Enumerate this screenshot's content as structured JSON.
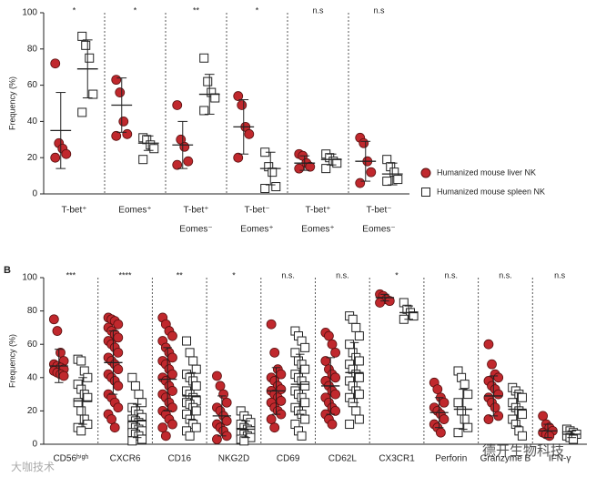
{
  "chart_data": [
    {
      "type": "dot",
      "ylabel": "Frequency (%)",
      "ylim": [
        0,
        100
      ],
      "yticks": [
        0,
        20,
        40,
        60,
        80,
        100
      ],
      "legend": "right",
      "categories": [
        [
          "T-bet⁺"
        ],
        [
          "Eomes⁺"
        ],
        [
          "T-bet⁺",
          "Eomes⁻"
        ],
        [
          "T-bet⁻",
          "Eomes⁺"
        ],
        [
          "T-bet⁺",
          "Eomes⁺"
        ],
        [
          "T-bet⁻",
          "Eomes⁻"
        ]
      ],
      "significance": [
        "*",
        "*",
        "**",
        "*",
        "n.s",
        "n.s"
      ],
      "series": [
        {
          "name": "Humanized mouse liver NK",
          "color": "#c0282d",
          "marker": "circle",
          "values": [
            [
              72,
              28,
              25,
              22,
              20
            ],
            [
              63,
              56,
              40,
              33,
              32
            ],
            [
              49,
              30,
              26,
              18,
              16
            ],
            [
              54,
              49,
              37,
              33,
              20
            ],
            [
              22,
              21,
              17,
              15,
              14
            ],
            [
              31,
              28,
              18,
              12,
              6
            ]
          ],
          "mean": [
            35,
            49,
            27,
            37,
            17,
            18
          ],
          "sd": [
            21,
            15,
            13,
            15,
            4,
            11
          ]
        },
        {
          "name": "Humanized mouse spleen NK",
          "color": "#ffffff",
          "marker": "square",
          "values": [
            [
              87,
              82,
              75,
              55,
              45
            ],
            [
              31,
              30,
              27,
              25,
              19
            ],
            [
              75,
              62,
              56,
              53,
              46
            ],
            [
              23,
              15,
              12,
              4,
              3
            ],
            [
              22,
              20,
              18,
              17,
              14
            ],
            [
              19,
              15,
              12,
              8,
              7
            ]
          ],
          "mean": [
            69,
            28,
            55,
            14,
            19,
            11
          ],
          "sd": [
            16,
            4,
            11,
            9,
            3,
            6
          ]
        }
      ]
    },
    {
      "type": "dot",
      "panel": "B",
      "ylabel": "Frequency (%)",
      "ylim": [
        0,
        100
      ],
      "yticks": [
        0,
        20,
        40,
        60,
        80,
        100
      ],
      "categories": [
        [
          "CD56ʰⁱᵍʰ"
        ],
        [
          "CXCR6"
        ],
        [
          "CD16"
        ],
        [
          "NKG2D"
        ],
        [
          "CD69"
        ],
        [
          "CD62L"
        ],
        [
          "CX3CR1"
        ],
        [
          "Perforin"
        ],
        [
          "Granzyme B"
        ],
        [
          "IFN-γ"
        ]
      ],
      "significance": [
        "***",
        "****",
        "**",
        "*",
        "n.s.",
        "n.s.",
        "*",
        "n.s.",
        "n.s.",
        "n.s"
      ],
      "series": [
        {
          "name": "Humanized mouse liver NK",
          "color": "#c0282d",
          "marker": "circle",
          "values": [
            [
              75,
              68,
              55,
              50,
              48,
              47,
              46,
              45,
              44,
              43,
              42,
              41
            ],
            [
              76,
              75,
              74,
              72,
              70,
              68,
              66,
              64,
              62,
              60,
              58,
              55,
              52,
              50,
              48,
              45,
              42,
              40,
              38,
              35,
              30,
              28,
              25,
              22,
              18,
              15,
              10
            ],
            [
              76,
              72,
              68,
              65,
              62,
              58,
              55,
              52,
              50,
              48,
              45,
              42,
              40,
              38,
              35,
              32,
              30,
              28,
              25,
              22,
              20,
              18,
              15,
              12,
              10,
              5
            ],
            [
              41,
              35,
              30,
              25,
              22,
              20,
              17,
              14,
              12,
              10,
              8,
              5,
              3
            ],
            [
              72,
              55,
              45,
              42,
              40,
              38,
              35,
              33,
              32,
              30,
              28,
              26,
              25,
              22,
              20,
              18,
              15,
              10
            ],
            [
              67,
              65,
              60,
              55,
              50,
              45,
              42,
              40,
              38,
              35,
              32,
              30,
              28,
              25,
              22,
              20,
              18,
              15,
              12
            ],
            [
              90,
              89,
              87,
              86,
              85
            ],
            [
              37,
              33,
              28,
              25,
              22,
              20,
              18,
              15,
              12,
              10,
              7
            ],
            [
              60,
              48,
              42,
              40,
              38,
              35,
              33,
              30,
              28,
              25,
              22,
              17,
              15
            ],
            [
              17,
              12,
              10,
              8,
              7,
              6,
              5
            ]
          ],
          "mean": [
            47,
            49,
            39,
            17,
            32,
            35,
            88,
            19,
            29,
            8
          ],
          "sd": [
            10,
            19,
            19,
            12,
            14,
            17,
            2,
            9,
            12,
            4
          ]
        },
        {
          "name": "Humanized mouse spleen NK",
          "color": "#ffffff",
          "marker": "square",
          "values": [
            [
              51,
              50,
              44,
              40,
              36,
              33,
              30,
              28,
              25,
              20,
              15,
              12,
              10,
              8
            ],
            [
              40,
              35,
              30,
              25,
              22,
              20,
              18,
              16,
              15,
              14,
              13,
              12,
              11,
              10,
              9,
              8,
              7,
              6,
              5,
              3,
              2
            ],
            [
              62,
              55,
              50,
              45,
              42,
              40,
              38,
              35,
              32,
              30,
              28,
              26,
              25,
              24,
              22,
              20,
              18,
              15,
              12,
              10,
              8,
              5
            ],
            [
              20,
              17,
              15,
              13,
              12,
              10,
              9,
              8,
              7,
              6,
              5,
              4,
              3,
              2
            ],
            [
              68,
              65,
              62,
              58,
              55,
              50,
              48,
              45,
              42,
              40,
              38,
              35,
              32,
              30,
              28,
              25,
              22,
              20,
              18,
              15,
              12,
              8,
              5
            ],
            [
              77,
              75,
              70,
              65,
              60,
              55,
              52,
              50,
              48,
              45,
              42,
              40,
              38,
              35,
              32,
              30,
              28,
              25,
              20,
              15,
              12
            ],
            [
              85,
              81,
              79,
              77,
              75
            ],
            [
              44,
              40,
              36,
              30,
              25,
              20,
              15,
              10,
              7
            ],
            [
              34,
              32,
              30,
              28,
              25,
              22,
              20,
              18,
              15,
              12,
              8,
              5
            ],
            [
              9,
              8,
              7,
              6,
              5,
              4,
              3
            ]
          ],
          "mean": [
            26,
            14,
            29,
            9,
            36,
            43,
            79,
            21,
            21,
            6
          ],
          "sd": [
            14,
            10,
            14,
            5,
            18,
            18,
            4,
            12,
            10,
            2
          ]
        }
      ]
    }
  ],
  "watermarks": [
    "大咖技术",
    "德开生物科技"
  ]
}
